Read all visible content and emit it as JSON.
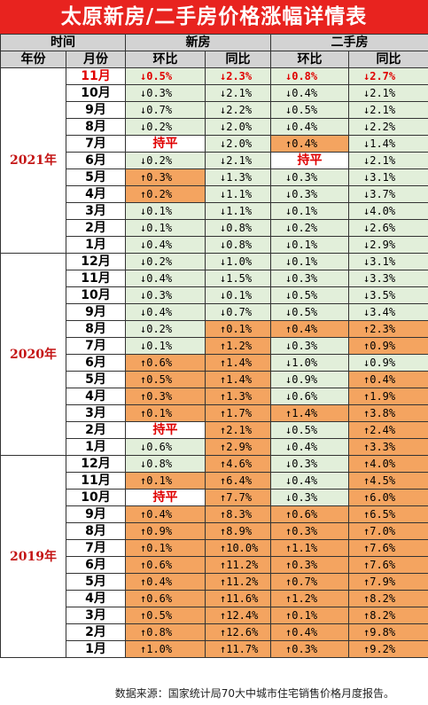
{
  "title": "太原新房/二手房价格涨幅详情表",
  "header": {
    "time": "时间",
    "new_house": "新房",
    "second_hand": "二手房",
    "year": "年份",
    "month": "月份",
    "mom": "环比",
    "yoy": "同比"
  },
  "groups": [
    {
      "year": "2021年",
      "rows": [
        {
          "m": "11月",
          "c": [
            [
              "↓0.5%",
              "g"
            ],
            [
              "↓2.3%",
              "g"
            ],
            [
              "↓0.8%",
              "g"
            ],
            [
              "↓2.7%",
              "g"
            ]
          ],
          "hi": true
        },
        {
          "m": "10月",
          "c": [
            [
              "↓0.3%",
              "g"
            ],
            [
              "↓2.1%",
              "g"
            ],
            [
              "↓0.4%",
              "g"
            ],
            [
              "↓2.1%",
              "g"
            ]
          ]
        },
        {
          "m": "9月",
          "c": [
            [
              "↓0.7%",
              "g"
            ],
            [
              "↓2.2%",
              "g"
            ],
            [
              "↓0.5%",
              "g"
            ],
            [
              "↓2.1%",
              "g"
            ]
          ]
        },
        {
          "m": "8月",
          "c": [
            [
              "↓0.2%",
              "g"
            ],
            [
              "↓2.0%",
              "g"
            ],
            [
              "↓0.4%",
              "g"
            ],
            [
              "↓2.2%",
              "g"
            ]
          ]
        },
        {
          "m": "7月",
          "c": [
            [
              "持平",
              "flat"
            ],
            [
              "↓2.0%",
              "g"
            ],
            [
              "↑0.4%",
              "o"
            ],
            [
              "↓1.4%",
              "g"
            ]
          ]
        },
        {
          "m": "6月",
          "c": [
            [
              "↓0.2%",
              "g"
            ],
            [
              "↓2.1%",
              "g"
            ],
            [
              "持平",
              "flat"
            ],
            [
              "↓2.1%",
              "g"
            ]
          ]
        },
        {
          "m": "5月",
          "c": [
            [
              "↑0.3%",
              "o"
            ],
            [
              "↓1.3%",
              "g"
            ],
            [
              "↓0.3%",
              "g"
            ],
            [
              "↓3.1%",
              "g"
            ]
          ]
        },
        {
          "m": "4月",
          "c": [
            [
              "↑0.2%",
              "o"
            ],
            [
              "↓1.1%",
              "g"
            ],
            [
              "↓0.3%",
              "g"
            ],
            [
              "↓3.7%",
              "g"
            ]
          ]
        },
        {
          "m": "3月",
          "c": [
            [
              "↓0.1%",
              "g"
            ],
            [
              "↓1.1%",
              "g"
            ],
            [
              "↓0.1%",
              "g"
            ],
            [
              "↓4.0%",
              "g"
            ]
          ]
        },
        {
          "m": "2月",
          "c": [
            [
              "↓0.1%",
              "g"
            ],
            [
              "↓0.8%",
              "g"
            ],
            [
              "↓0.2%",
              "g"
            ],
            [
              "↓2.6%",
              "g"
            ]
          ]
        },
        {
          "m": "1月",
          "c": [
            [
              "↓0.4%",
              "g"
            ],
            [
              "↓0.8%",
              "g"
            ],
            [
              "↓0.1%",
              "g"
            ],
            [
              "↓2.9%",
              "g"
            ]
          ]
        }
      ]
    },
    {
      "year": "2020年",
      "rows": [
        {
          "m": "12月",
          "c": [
            [
              "↓0.2%",
              "g"
            ],
            [
              "↓1.0%",
              "g"
            ],
            [
              "↓0.1%",
              "g"
            ],
            [
              "↓3.1%",
              "g"
            ]
          ]
        },
        {
          "m": "11月",
          "c": [
            [
              "↓0.4%",
              "g"
            ],
            [
              "↓1.5%",
              "g"
            ],
            [
              "↓0.3%",
              "g"
            ],
            [
              "↓3.3%",
              "g"
            ]
          ]
        },
        {
          "m": "10月",
          "c": [
            [
              "↓0.3%",
              "g"
            ],
            [
              "↓0.1%",
              "g"
            ],
            [
              "↓0.5%",
              "g"
            ],
            [
              "↓3.5%",
              "g"
            ]
          ]
        },
        {
          "m": "9月",
          "c": [
            [
              "↓0.4%",
              "g"
            ],
            [
              "↓0.7%",
              "g"
            ],
            [
              "↓0.5%",
              "g"
            ],
            [
              "↓3.4%",
              "g"
            ]
          ]
        },
        {
          "m": "8月",
          "c": [
            [
              "↓0.2%",
              "g"
            ],
            [
              "↑0.1%",
              "o"
            ],
            [
              "↑0.4%",
              "o"
            ],
            [
              "↑2.3%",
              "o"
            ]
          ]
        },
        {
          "m": "7月",
          "c": [
            [
              "↓0.1%",
              "g"
            ],
            [
              "↑1.2%",
              "o"
            ],
            [
              "↓0.3%",
              "g"
            ],
            [
              "↑0.9%",
              "o"
            ]
          ]
        },
        {
          "m": "6月",
          "c": [
            [
              "↑0.6%",
              "o"
            ],
            [
              "↑1.4%",
              "o"
            ],
            [
              "↓1.0%",
              "g"
            ],
            [
              "↓0.9%",
              "g"
            ]
          ]
        },
        {
          "m": "5月",
          "c": [
            [
              "↑0.5%",
              "o"
            ],
            [
              "↑1.4%",
              "o"
            ],
            [
              "↓0.9%",
              "g"
            ],
            [
              "↑0.4%",
              "o"
            ]
          ]
        },
        {
          "m": "4月",
          "c": [
            [
              "↑0.3%",
              "o"
            ],
            [
              "↑1.3%",
              "o"
            ],
            [
              "↓0.6%",
              "g"
            ],
            [
              "↑1.9%",
              "o"
            ]
          ]
        },
        {
          "m": "3月",
          "c": [
            [
              "↑0.1%",
              "o"
            ],
            [
              "↑1.7%",
              "o"
            ],
            [
              "↑1.4%",
              "o"
            ],
            [
              "↑3.8%",
              "o"
            ]
          ]
        },
        {
          "m": "2月",
          "c": [
            [
              "持平",
              "flat"
            ],
            [
              "↑2.1%",
              "o"
            ],
            [
              "↓0.5%",
              "g"
            ],
            [
              "↑2.4%",
              "o"
            ]
          ]
        },
        {
          "m": "1月",
          "c": [
            [
              "↓0.6%",
              "g"
            ],
            [
              "↑2.9%",
              "o"
            ],
            [
              "↓0.4%",
              "g"
            ],
            [
              "↑3.3%",
              "o"
            ]
          ]
        }
      ]
    },
    {
      "year": "2019年",
      "rows": [
        {
          "m": "12月",
          "c": [
            [
              "↓0.8%",
              "g"
            ],
            [
              "↑4.6%",
              "o"
            ],
            [
              "↓0.3%",
              "g"
            ],
            [
              "↑4.0%",
              "o"
            ]
          ]
        },
        {
          "m": "11月",
          "c": [
            [
              "↑0.1%",
              "o"
            ],
            [
              "↑6.4%",
              "o"
            ],
            [
              "↓0.4%",
              "g"
            ],
            [
              "↑4.5%",
              "o"
            ]
          ]
        },
        {
          "m": "10月",
          "c": [
            [
              "持平",
              "flat"
            ],
            [
              "↑7.7%",
              "o"
            ],
            [
              "↓0.3%",
              "g"
            ],
            [
              "↑6.0%",
              "o"
            ]
          ]
        },
        {
          "m": "9月",
          "c": [
            [
              "↑0.4%",
              "o"
            ],
            [
              "↑8.3%",
              "o"
            ],
            [
              "↑0.6%",
              "o"
            ],
            [
              "↑6.5%",
              "o"
            ]
          ]
        },
        {
          "m": "8月",
          "c": [
            [
              "↑0.9%",
              "o"
            ],
            [
              "↑8.9%",
              "o"
            ],
            [
              "↑0.3%",
              "o"
            ],
            [
              "↑7.0%",
              "o"
            ]
          ]
        },
        {
          "m": "7月",
          "c": [
            [
              "↑0.1%",
              "o"
            ],
            [
              "↑10.0%",
              "o"
            ],
            [
              "↑1.1%",
              "o"
            ],
            [
              "↑7.6%",
              "o"
            ]
          ]
        },
        {
          "m": "6月",
          "c": [
            [
              "↑0.6%",
              "o"
            ],
            [
              "↑11.2%",
              "o"
            ],
            [
              "↑0.3%",
              "o"
            ],
            [
              "↑7.6%",
              "o"
            ]
          ]
        },
        {
          "m": "5月",
          "c": [
            [
              "↑0.4%",
              "o"
            ],
            [
              "↑11.2%",
              "o"
            ],
            [
              "↑0.7%",
              "o"
            ],
            [
              "↑7.9%",
              "o"
            ]
          ]
        },
        {
          "m": "4月",
          "c": [
            [
              "↑0.6%",
              "o"
            ],
            [
              "↑11.6%",
              "o"
            ],
            [
              "↑1.2%",
              "o"
            ],
            [
              "↑8.2%",
              "o"
            ]
          ]
        },
        {
          "m": "3月",
          "c": [
            [
              "↑0.5%",
              "o"
            ],
            [
              "↑12.4%",
              "o"
            ],
            [
              "↑0.1%",
              "o"
            ],
            [
              "↑8.2%",
              "o"
            ]
          ]
        },
        {
          "m": "2月",
          "c": [
            [
              "↑0.8%",
              "o"
            ],
            [
              "↑12.6%",
              "o"
            ],
            [
              "↑0.4%",
              "o"
            ],
            [
              "↑9.8%",
              "o"
            ]
          ]
        },
        {
          "m": "1月",
          "c": [
            [
              "↑1.0%",
              "o"
            ],
            [
              "↑11.7%",
              "o"
            ],
            [
              "↑0.3%",
              "o"
            ],
            [
              "↑9.2%",
              "o"
            ]
          ]
        }
      ]
    }
  ],
  "footer": "数据来源：国家统计局70大中城市住宅销售价格月度报告。"
}
